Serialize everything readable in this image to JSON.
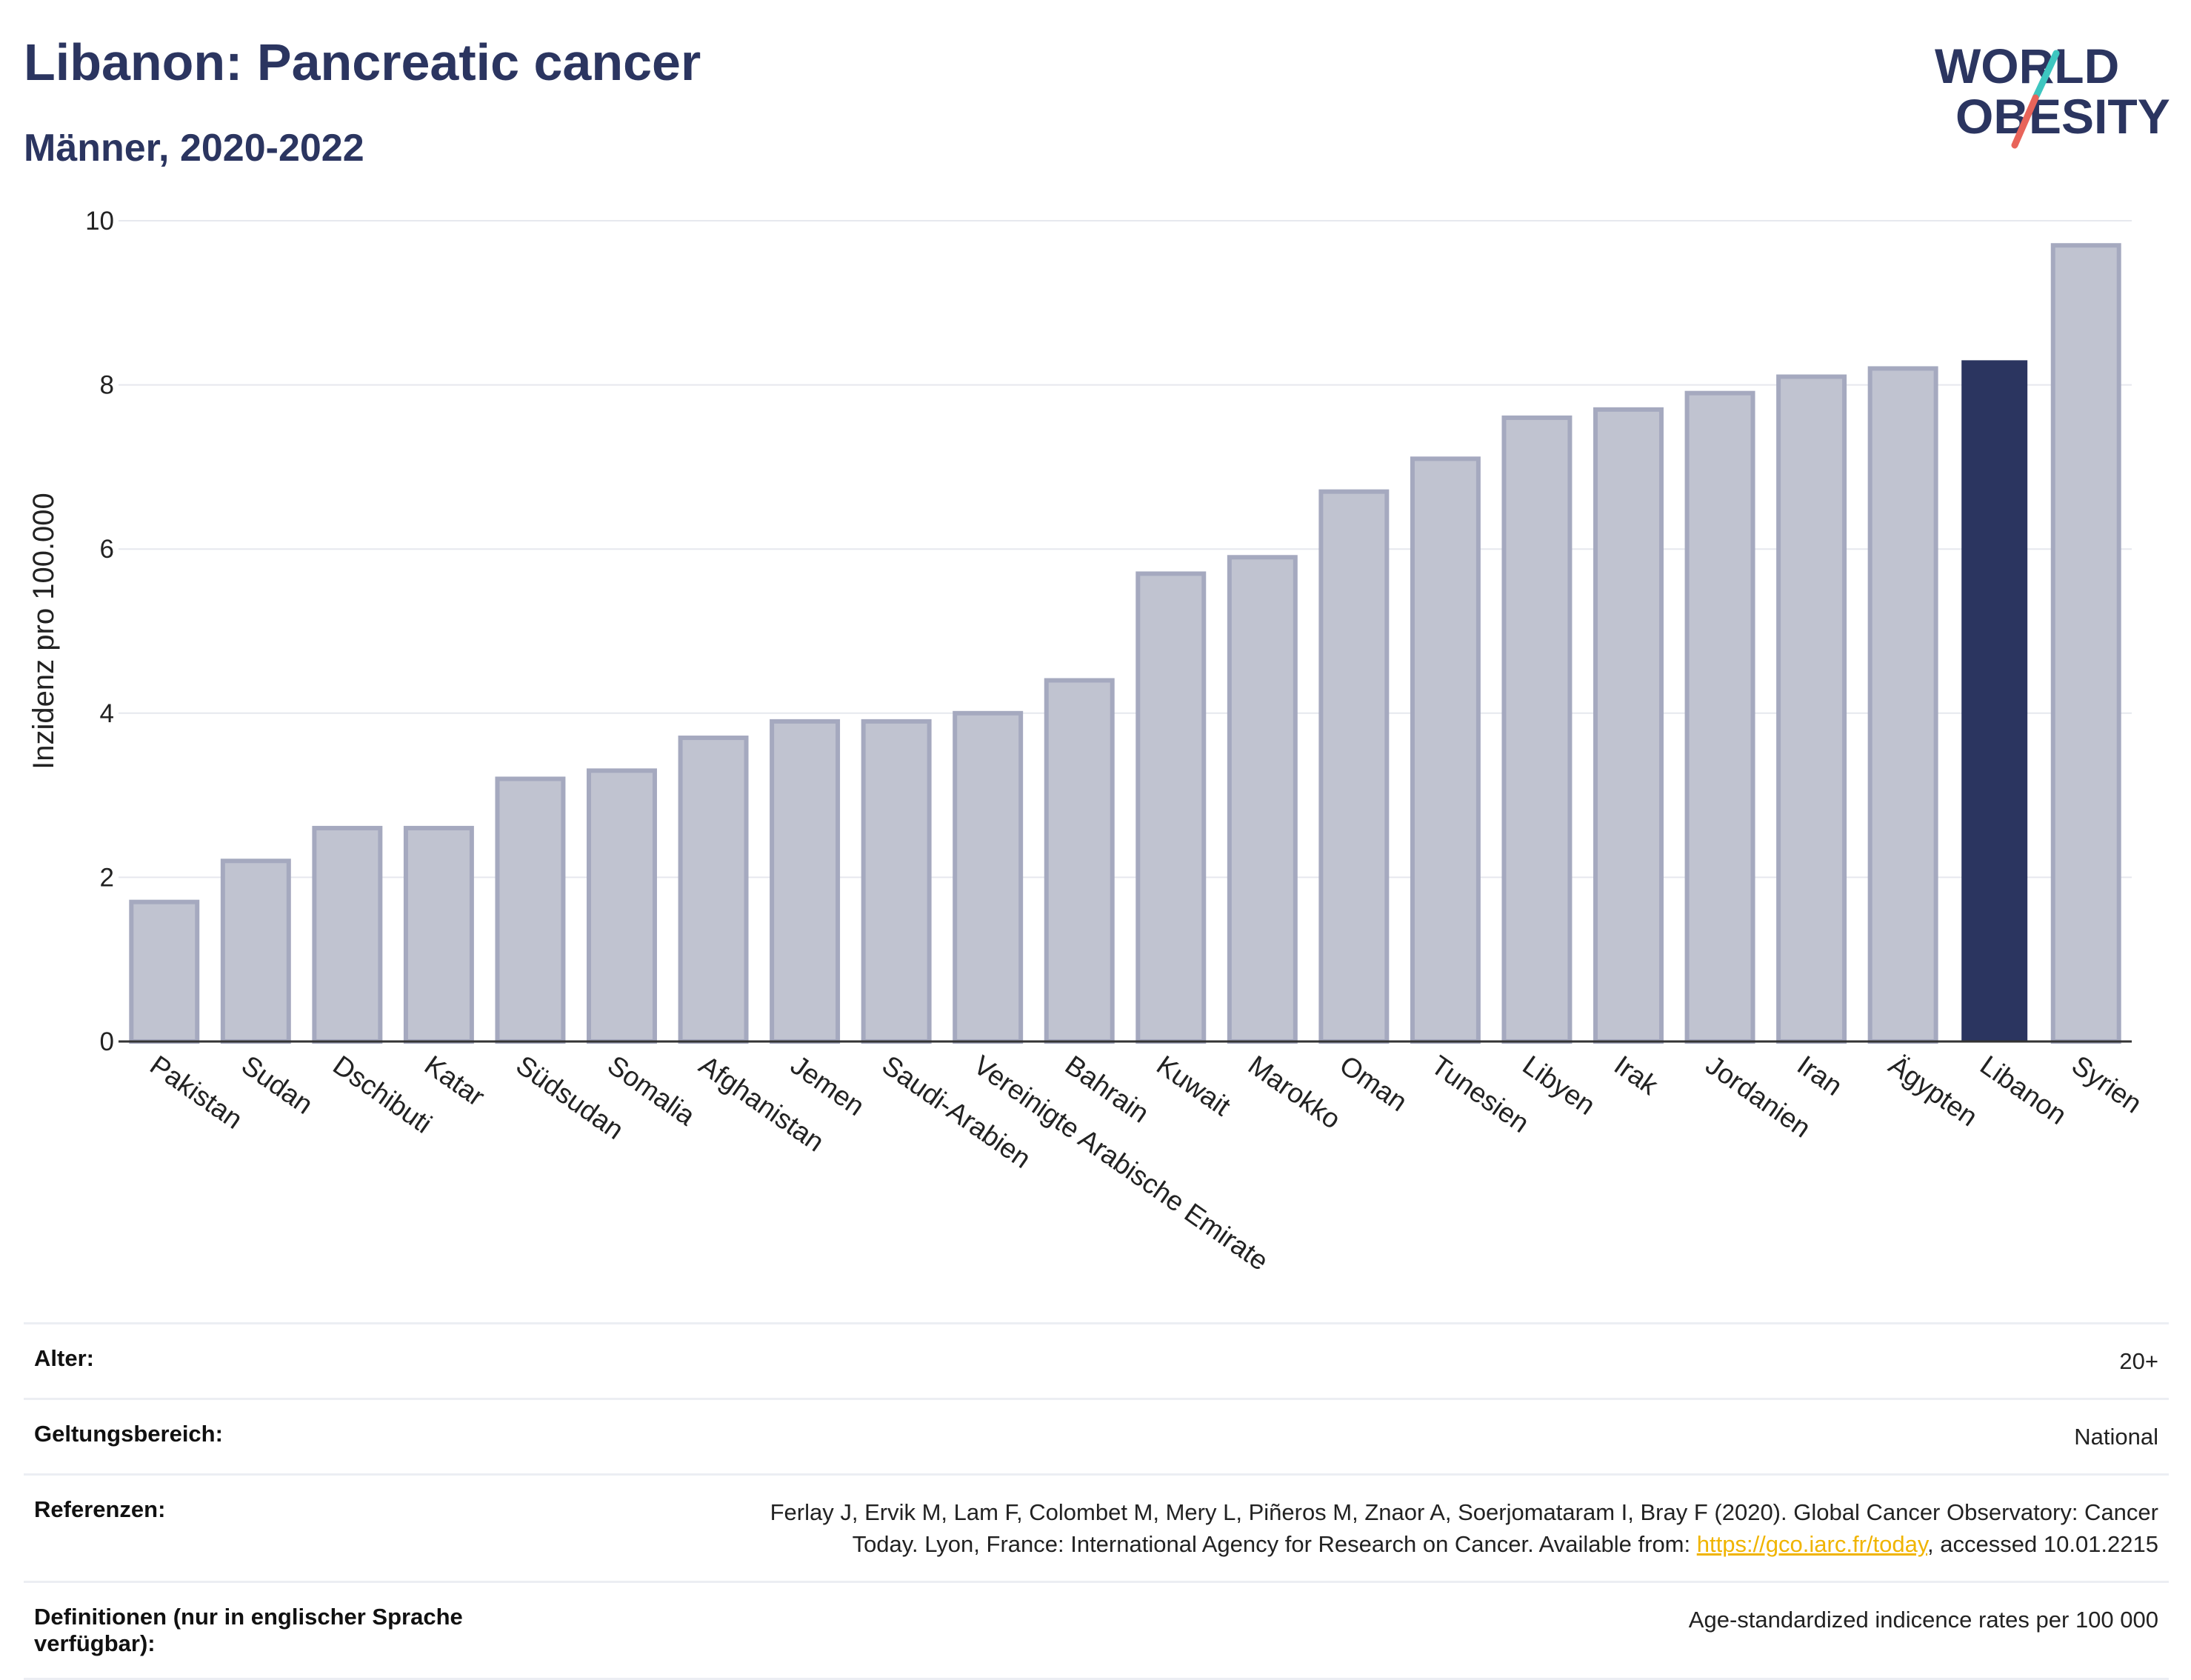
{
  "header": {
    "title": "Libanon: Pancreatic cancer",
    "subtitle": "Männer, 2020-2022"
  },
  "logo": {
    "line1": "WORLD",
    "line2": "OBESITY"
  },
  "colors": {
    "highlight": "#2b3560",
    "bar": "#c0c3d0",
    "bar_border": "#a5a9bf",
    "grid": "#e6e8ee",
    "title": "#2b3560",
    "logo_slash_top": "#3ec6c0",
    "logo_slash_bottom": "#e8645a"
  },
  "chart_data": {
    "type": "bar",
    "ylabel": "Inzidenz pro 100.000",
    "xlabel": "",
    "ylim": [
      0,
      10
    ],
    "yticks": [
      0,
      2,
      4,
      6,
      8,
      10
    ],
    "grid": true,
    "highlight": "Libanon",
    "categories": [
      "Pakistan",
      "Sudan",
      "Dschibuti",
      "Katar",
      "Südsudan",
      "Somalia",
      "Afghanistan",
      "Jemen",
      "Saudi-Arabien",
      "Vereinigte Arabische Emirate",
      "Bahrain",
      "Kuwait",
      "Marokko",
      "Oman",
      "Tunesien",
      "Libyen",
      "Irak",
      "Jordanien",
      "Iran",
      "Ägypten",
      "Libanon",
      "Syrien"
    ],
    "values": [
      1.7,
      2.2,
      2.6,
      2.6,
      3.2,
      3.3,
      3.7,
      3.9,
      3.9,
      4.0,
      4.4,
      5.7,
      5.9,
      6.7,
      7.1,
      7.6,
      7.7,
      7.9,
      8.1,
      8.2,
      8.3,
      9.7
    ]
  },
  "meta": {
    "rows": [
      {
        "label": "Alter:",
        "value": "20+"
      },
      {
        "label": "Geltungsbereich:",
        "value": "National"
      }
    ],
    "references": {
      "label": "Referenzen:",
      "text_line1": "Ferlay J, Ervik M, Lam F, Colombet M, Mery L, Piñeros M, Znaor A, Soerjomataram I, Bray F (2020). Global Cancer Observatory: Cancer",
      "text_line2_pre": "Today. Lyon, France: International Agency for Research on Cancer. Available from: ",
      "link": "https://gco.iarc.fr/today",
      "text_line2_post": ", accessed 10.01.2215"
    },
    "definitions": {
      "label": "Definitionen (nur in englischer Sprache verfügbar):",
      "value": "Age-standardized indicence rates per 100 000"
    }
  }
}
